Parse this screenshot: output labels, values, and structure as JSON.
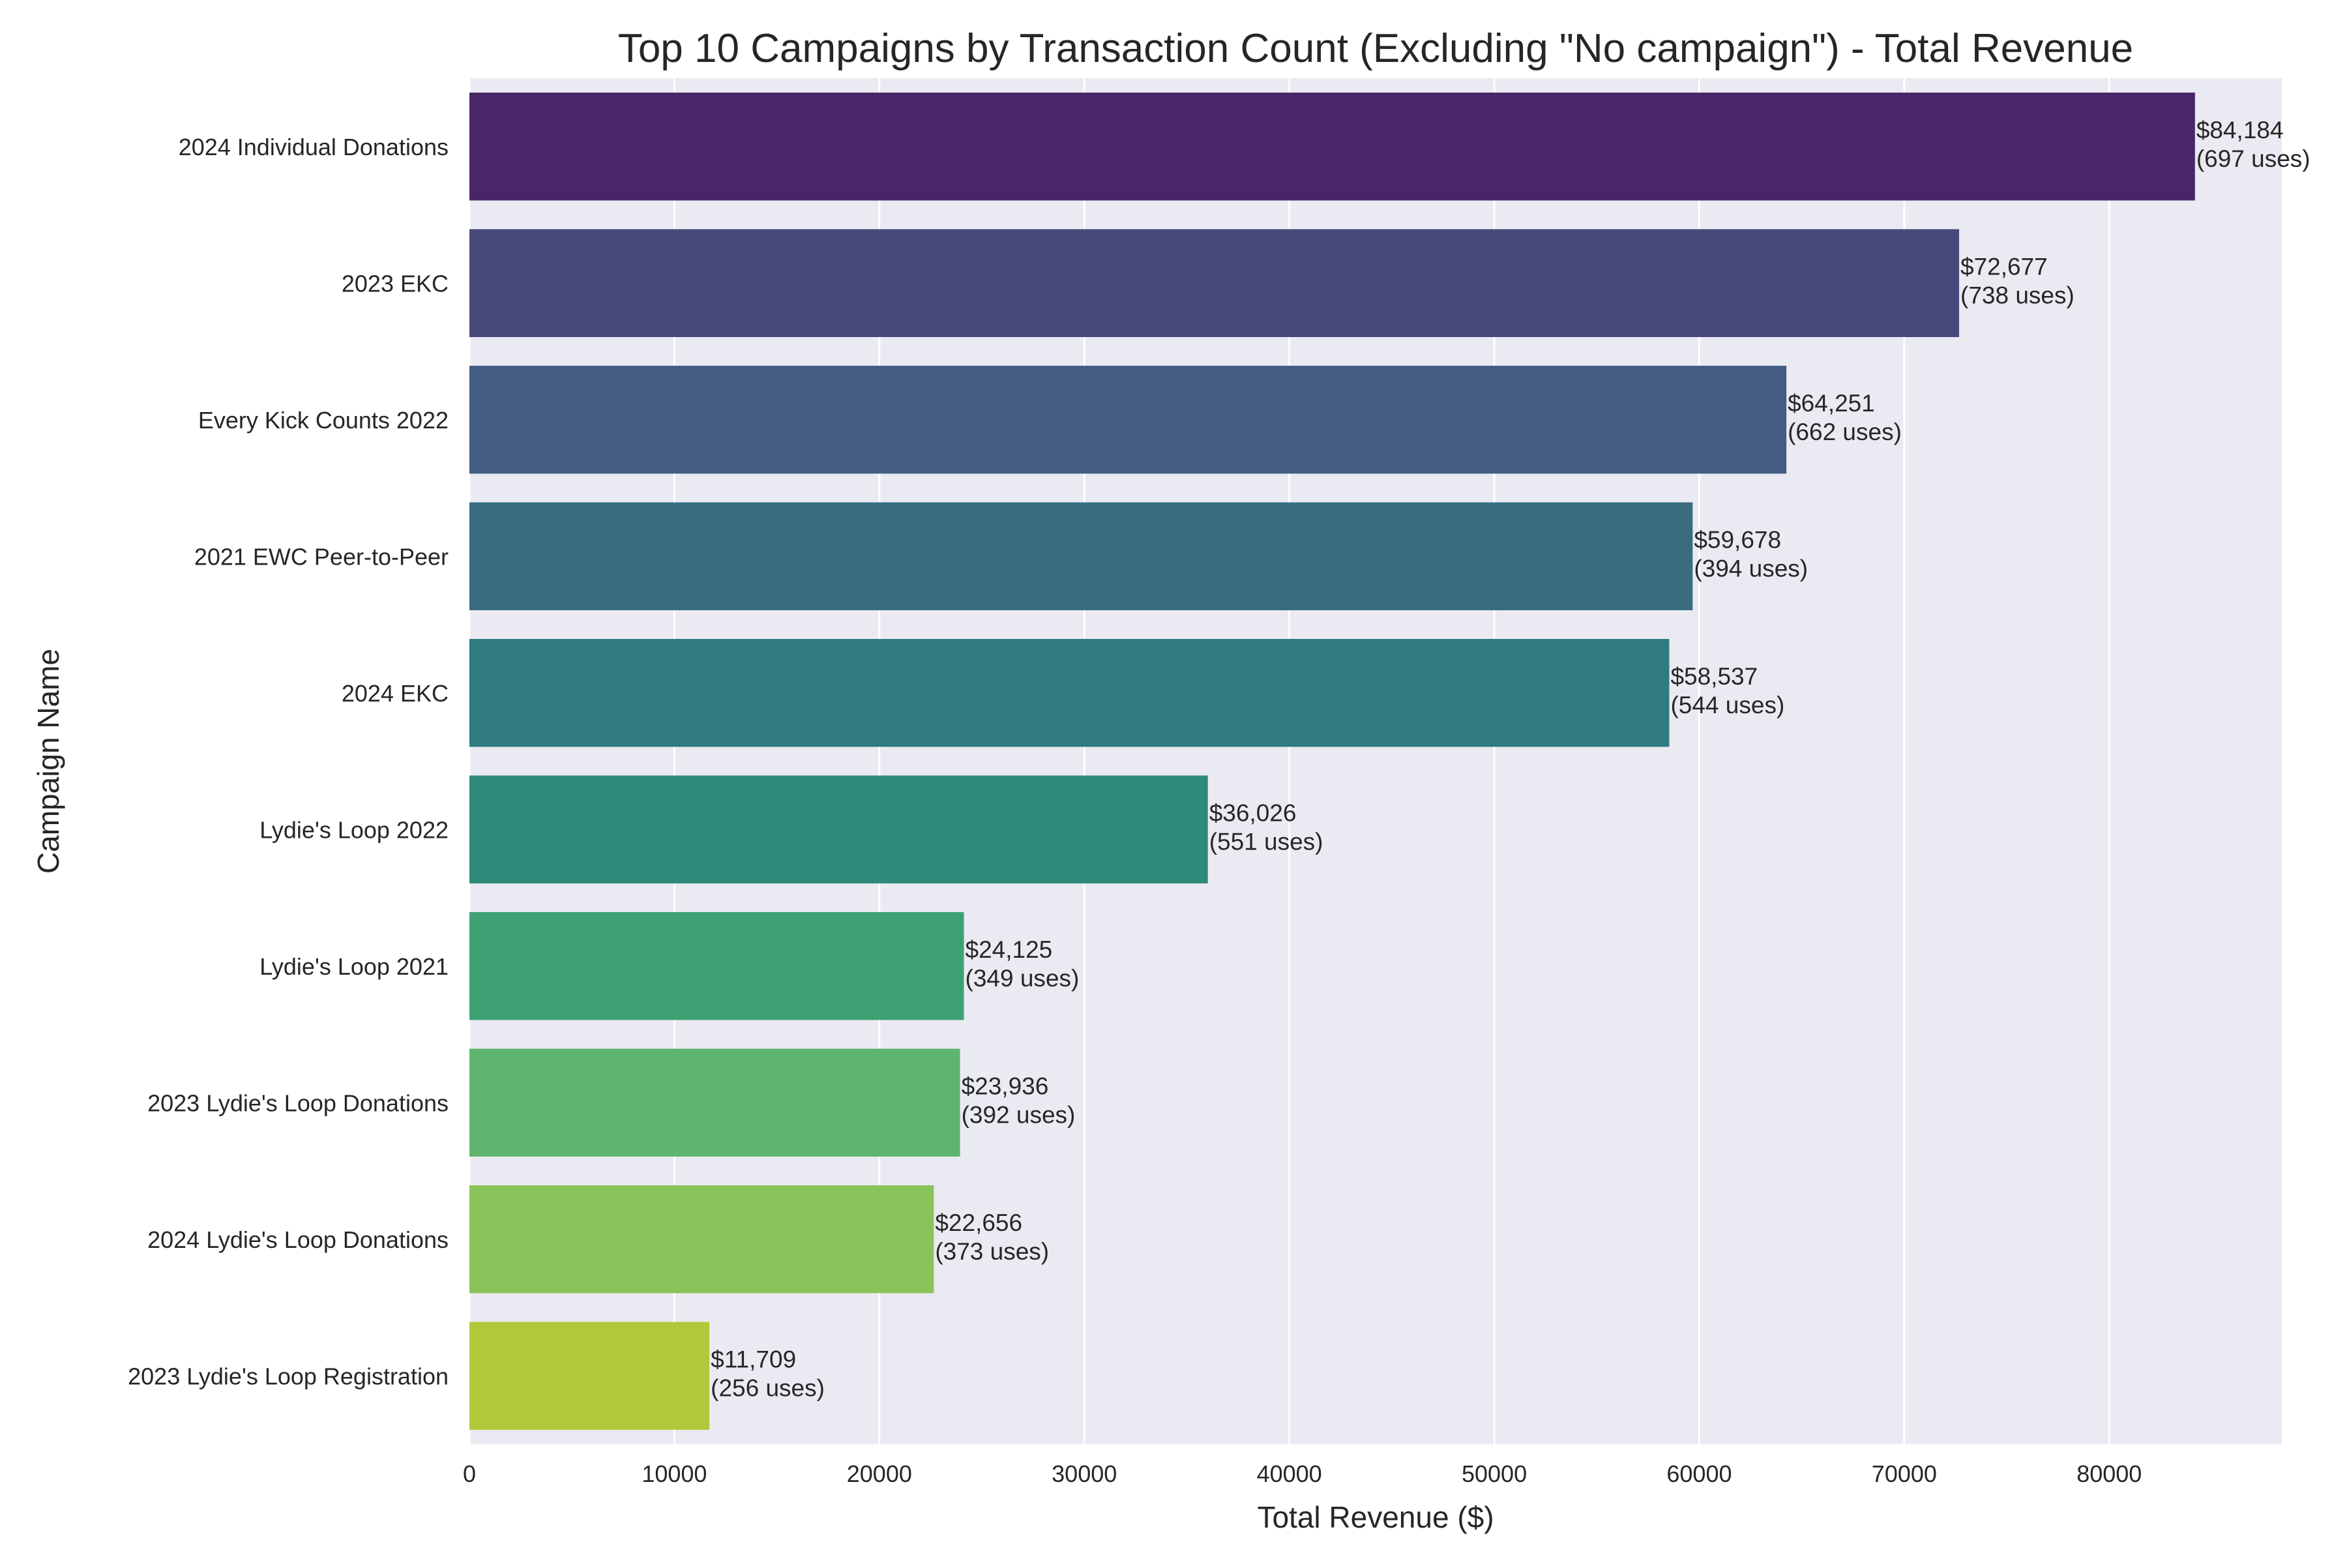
{
  "chart_data": {
    "type": "bar",
    "orientation": "horizontal",
    "title": "Top 10 Campaigns by Transaction Count (Excluding \"No campaign\") - Total Revenue",
    "xlabel": "Total Revenue ($)",
    "ylabel": "Campaign Name",
    "xlim": [
      0,
      88420
    ],
    "xticks": [
      0,
      10000,
      20000,
      30000,
      40000,
      50000,
      60000,
      70000,
      80000
    ],
    "grid": true,
    "legend": "none",
    "categories": [
      "2024 Individual Donations",
      "2023 EKC",
      "Every Kick Counts 2022",
      "2021 EWC Peer-to-Peer",
      "2024 EKC",
      "Lydie's Loop 2022",
      "Lydie's Loop 2021",
      "2023 Lydie's Loop Donations",
      "2024 Lydie's Loop Donations",
      "2023 Lydie's Loop Registration"
    ],
    "values": [
      84184,
      72677,
      64251,
      59678,
      58537,
      36026,
      24125,
      23936,
      22656,
      11709
    ],
    "uses": [
      697,
      738,
      662,
      394,
      544,
      551,
      349,
      392,
      373,
      256
    ],
    "value_labels": [
      "$84,184",
      "$72,677",
      "$64,251",
      "$59,678",
      "$58,537",
      "$36,026",
      "$24,125",
      "$23,936",
      "$22,656",
      "$11,709"
    ],
    "uses_labels": [
      "(697 uses)",
      "(738 uses)",
      "(662 uses)",
      "(394 uses)",
      "(544 uses)",
      "(551 uses)",
      "(349 uses)",
      "(392 uses)",
      "(373 uses)",
      "(256 uses)"
    ],
    "colors": [
      "#482667",
      "#48497b",
      "#435d82",
      "#386d80",
      "#2f7b7f",
      "#2e8b7a",
      "#3ea174",
      "#5fb56f",
      "#8ac35a",
      "#b0c93a"
    ]
  },
  "style": {
    "plot_background": "#eaeaf2",
    "grid_color": "#ffffff",
    "text_color": "#262626"
  }
}
